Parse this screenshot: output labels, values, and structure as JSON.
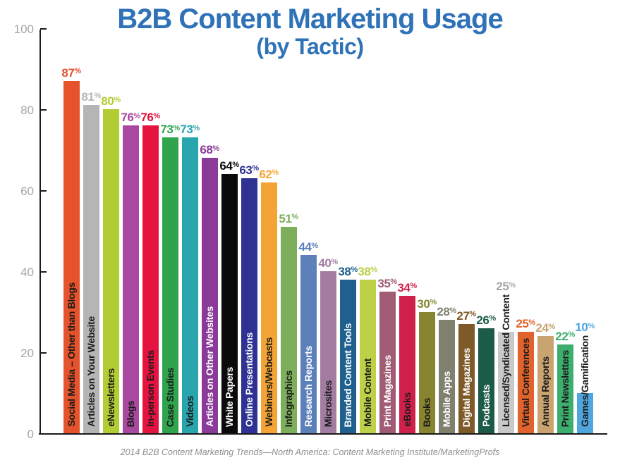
{
  "title": {
    "main": "B2B Content Marketing Usage",
    "sub": "(by Tactic)",
    "color": "#2F72B8"
  },
  "caption": "2014 B2B Content Marketing Trends—North America: Content Marketing Institute/MarketingProfs",
  "chart_data": {
    "type": "bar",
    "title": "B2B Content Marketing Usage (by Tactic)",
    "xlabel": "",
    "ylabel": "",
    "ylim": [
      0,
      100
    ],
    "yticks": [
      0,
      20,
      40,
      60,
      80,
      100
    ],
    "grid": false,
    "legend": false,
    "value_suffix": "%",
    "bars": [
      {
        "label": "Social Media – Other than Blogs",
        "value": 87,
        "color": "#E4532B",
        "label_color": "#1A1A1A"
      },
      {
        "label": "Articles on Your Website",
        "value": 81,
        "color": "#B5B5B5",
        "label_color": "#1A1A1A"
      },
      {
        "label": "eNewsletters",
        "value": 80,
        "color": "#B2CC33",
        "label_color": "#1A1A1A"
      },
      {
        "label": "Blogs",
        "value": 76,
        "color": "#A8499F",
        "label_color": "#1A1A1A"
      },
      {
        "label": "In-person Events",
        "value": 76,
        "color": "#E5133F",
        "label_color": "#1A1A1A"
      },
      {
        "label": "Case Studies",
        "value": 73,
        "color": "#2FA44D",
        "label_color": "#1A1A1A"
      },
      {
        "label": "Videos",
        "value": 73,
        "color": "#29A5AE",
        "label_color": "#1A1A1A"
      },
      {
        "label": "Articles on Other Websites",
        "value": 68,
        "color": "#8A3A99",
        "label_color": "#FFFFFF"
      },
      {
        "label": "White Papers",
        "value": 64,
        "color": "#0A0A0A",
        "label_color": "#FFFFFF"
      },
      {
        "label": "Online Presentations",
        "value": 63,
        "color": "#2F3293",
        "label_color": "#FFFFFF"
      },
      {
        "label": "Webinars/Webcasts",
        "value": 62,
        "color": "#F4A434",
        "label_color": "#1A1A1A"
      },
      {
        "label": "Infographics",
        "value": 51,
        "color": "#7CAE5B",
        "label_color": "#1A1A1A"
      },
      {
        "label": "Research Reports",
        "value": 44,
        "color": "#5C80BA",
        "label_color": "#FFFFFF"
      },
      {
        "label": "Microsites",
        "value": 40,
        "color": "#A27DA1",
        "label_color": "#1A1A1A"
      },
      {
        "label": "Branded Content Tools",
        "value": 38,
        "color": "#1F608F",
        "label_color": "#FFFFFF"
      },
      {
        "label": "Mobile Content",
        "value": 38,
        "color": "#BCD048",
        "label_color": "#1A1A1A"
      },
      {
        "label": "Print Magazines",
        "value": 35,
        "color": "#A05C74",
        "label_color": "#FFFFFF"
      },
      {
        "label": "eBooks",
        "value": 34,
        "color": "#CF2049",
        "label_color": "#1A1A1A"
      },
      {
        "label": "Books",
        "value": 30,
        "color": "#87852F",
        "label_color": "#1A1A1A"
      },
      {
        "label": "Mobile Apps",
        "value": 28,
        "color": "#80806F",
        "label_color": "#FFFFFF"
      },
      {
        "label": "Digital Magazines",
        "value": 27,
        "color": "#7D5A28",
        "label_color": "#FFFFFF"
      },
      {
        "label": "Podcasts",
        "value": 26,
        "color": "#1C5B47",
        "label_color": "#FFFFFF"
      },
      {
        "label": "Licensed/Syndicated Content",
        "value": 25,
        "color": "#C9C9C9",
        "label_color": "#1A1A1A",
        "value_color": "#A6A6A6"
      },
      {
        "label": "Virtual Conferences",
        "value": 25,
        "color": "#E0622C",
        "label_color": "#1A1A1A"
      },
      {
        "label": "Annual Reports",
        "value": 24,
        "color": "#C9A470",
        "label_color": "#1A1A1A"
      },
      {
        "label": "Print Newsletters",
        "value": 22,
        "color": "#3CAE6D",
        "label_color": "#1A1A1A"
      },
      {
        "label": "Games/Gamification",
        "value": 10,
        "color": "#4FA6DE",
        "label_color": "#1A1A1A"
      }
    ]
  }
}
